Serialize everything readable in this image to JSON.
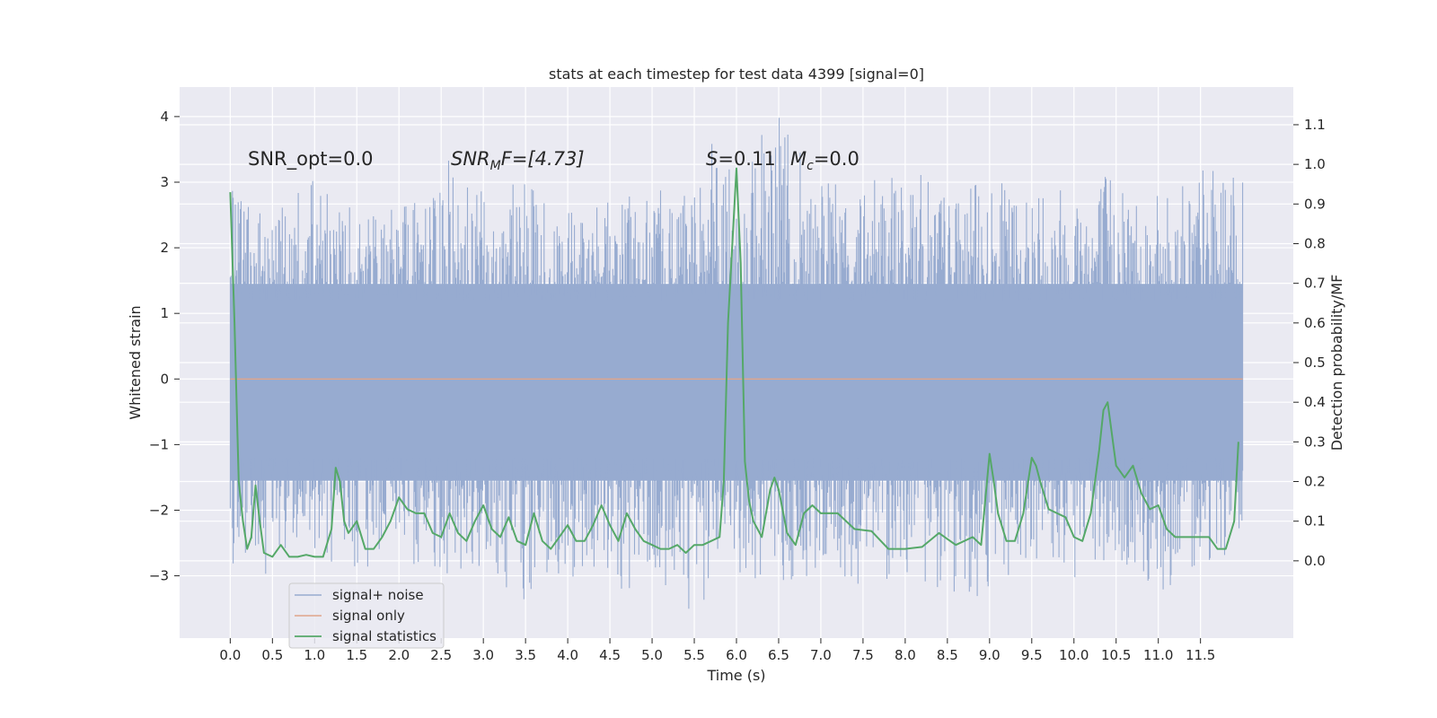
{
  "chart_data": {
    "type": "line",
    "title": "stats at each timestep for test data 4399 [signal=0]",
    "xlabel": "Time (s)",
    "ylabel_left": "Whitened strain",
    "ylabel_right": "Detection probability/MF",
    "xlim": [
      -0.6,
      12.6
    ],
    "ylim_left": [
      -3.95,
      4.45
    ],
    "ylim_right": [
      -0.195,
      1.195
    ],
    "x_ticks": [
      0.0,
      0.5,
      1.0,
      1.5,
      2.0,
      2.5,
      3.0,
      3.5,
      4.0,
      4.5,
      5.0,
      5.5,
      6.0,
      6.5,
      7.0,
      7.5,
      8.0,
      8.5,
      9.0,
      9.5,
      10.0,
      10.5,
      11.0,
      11.5
    ],
    "x_tick_labels": [
      "0.0",
      "0.5",
      "1.0",
      "1.5",
      "2.0",
      "2.5",
      "3.0",
      "3.5",
      "4.0",
      "4.5",
      "5.0",
      "5.5",
      "6.0",
      "6.5",
      "7.0",
      "7.5",
      "8.0",
      "8.5",
      "9.0",
      "9.5",
      "10.0",
      "10.5",
      "11.0",
      "11.5"
    ],
    "y_left_ticks": [
      -3,
      -2,
      -1,
      0,
      1,
      2,
      3,
      4
    ],
    "y_left_tick_labels": [
      "−3",
      "−2",
      "−1",
      "0",
      "1",
      "2",
      "3",
      "4"
    ],
    "y_right_ticks": [
      0.0,
      0.1,
      0.2,
      0.3,
      0.4,
      0.5,
      0.6,
      0.7,
      0.8,
      0.9,
      1.0,
      1.1
    ],
    "y_right_tick_labels": [
      "0.0",
      "0.1",
      "0.2",
      "0.3",
      "0.4",
      "0.5",
      "0.6",
      "0.7",
      "0.8",
      "0.9",
      "1.0",
      "1.1"
    ],
    "grid": true,
    "legend_position": "lower-left",
    "annotations": {
      "snr_opt": "SNR_opt=0.0",
      "snr_mf_sym": "SNR",
      "snr_mf_sub": "M",
      "snr_mf_rest": "F=[4.73]",
      "s_sym": "S",
      "s_rest": "=0.11",
      "mc_sym": "M",
      "mc_sub": "c",
      "mc_rest": "=0.0"
    },
    "series": [
      {
        "name": "signal+ noise",
        "color": "#97abd0",
        "axis": "left",
        "duration_s": 12.0,
        "envelope": {
          "x": [
            0.0,
            0.5,
            1.0,
            1.5,
            2.0,
            2.5,
            3.0,
            3.5,
            4.0,
            4.5,
            5.0,
            5.5,
            5.7,
            6.0,
            6.5,
            7.0,
            7.5,
            8.0,
            8.5,
            9.0,
            9.5,
            10.0,
            10.5,
            11.0,
            11.5,
            12.0
          ],
          "upper": [
            2.9,
            2.6,
            3.05,
            2.6,
            2.6,
            3.45,
            2.9,
            3.0,
            2.8,
            2.75,
            2.9,
            3.0,
            3.8,
            3.2,
            4.1,
            3.0,
            3.35,
            3.3,
            2.9,
            3.0,
            3.0,
            3.2,
            3.3,
            2.8,
            3.35,
            3.0
          ],
          "lower": [
            -2.8,
            -3.1,
            -2.8,
            -2.9,
            -2.9,
            -3.0,
            -2.9,
            -3.45,
            -3.0,
            -3.5,
            -3.0,
            -3.6,
            -3.2,
            -3.0,
            -3.1,
            -3.0,
            -3.2,
            -3.0,
            -3.3,
            -3.35,
            -2.7,
            -3.2,
            -3.0,
            -3.3,
            -2.8,
            -2.7
          ]
        }
      },
      {
        "name": "signal only",
        "color": "#e0a58a",
        "axis": "left",
        "x": [
          0.0,
          12.0
        ],
        "y": [
          0.0,
          0.0
        ]
      },
      {
        "name": "signal statistics",
        "color": "#55a868",
        "axis": "right",
        "x": [
          0.0,
          0.05,
          0.1,
          0.15,
          0.2,
          0.25,
          0.3,
          0.35,
          0.4,
          0.5,
          0.6,
          0.7,
          0.8,
          0.9,
          1.0,
          1.1,
          1.2,
          1.25,
          1.3,
          1.35,
          1.4,
          1.5,
          1.6,
          1.7,
          1.8,
          1.9,
          2.0,
          2.1,
          2.2,
          2.3,
          2.4,
          2.5,
          2.6,
          2.7,
          2.8,
          2.9,
          3.0,
          3.1,
          3.2,
          3.3,
          3.4,
          3.5,
          3.6,
          3.7,
          3.8,
          3.9,
          4.0,
          4.1,
          4.2,
          4.3,
          4.4,
          4.5,
          4.6,
          4.7,
          4.8,
          4.9,
          5.0,
          5.1,
          5.2,
          5.3,
          5.4,
          5.5,
          5.6,
          5.7,
          5.8,
          5.85,
          5.9,
          6.0,
          6.05,
          6.1,
          6.15,
          6.2,
          6.3,
          6.4,
          6.45,
          6.5,
          6.6,
          6.7,
          6.8,
          6.9,
          7.0,
          7.2,
          7.4,
          7.6,
          7.8,
          8.0,
          8.2,
          8.4,
          8.6,
          8.8,
          8.9,
          9.0,
          9.05,
          9.1,
          9.2,
          9.3,
          9.4,
          9.5,
          9.55,
          9.6,
          9.7,
          9.8,
          9.9,
          10.0,
          10.1,
          10.2,
          10.3,
          10.35,
          10.4,
          10.5,
          10.6,
          10.7,
          10.8,
          10.9,
          11.0,
          11.1,
          11.2,
          11.3,
          11.4,
          11.5,
          11.6,
          11.7,
          11.8,
          11.9,
          11.95
        ],
        "y": [
          0.93,
          0.6,
          0.2,
          0.1,
          0.03,
          0.06,
          0.19,
          0.1,
          0.02,
          0.01,
          0.04,
          0.01,
          0.01,
          0.015,
          0.01,
          0.01,
          0.08,
          0.235,
          0.2,
          0.1,
          0.07,
          0.1,
          0.03,
          0.03,
          0.06,
          0.1,
          0.16,
          0.13,
          0.12,
          0.12,
          0.07,
          0.06,
          0.12,
          0.07,
          0.05,
          0.1,
          0.14,
          0.08,
          0.06,
          0.11,
          0.05,
          0.04,
          0.12,
          0.05,
          0.03,
          0.06,
          0.09,
          0.05,
          0.05,
          0.09,
          0.14,
          0.09,
          0.05,
          0.12,
          0.08,
          0.05,
          0.04,
          0.03,
          0.03,
          0.04,
          0.02,
          0.04,
          0.04,
          0.05,
          0.06,
          0.2,
          0.6,
          0.99,
          0.75,
          0.25,
          0.15,
          0.1,
          0.06,
          0.18,
          0.21,
          0.18,
          0.07,
          0.04,
          0.12,
          0.14,
          0.12,
          0.12,
          0.08,
          0.075,
          0.03,
          0.03,
          0.035,
          0.07,
          0.04,
          0.06,
          0.04,
          0.27,
          0.2,
          0.12,
          0.05,
          0.05,
          0.12,
          0.26,
          0.24,
          0.2,
          0.13,
          0.12,
          0.11,
          0.06,
          0.05,
          0.12,
          0.28,
          0.38,
          0.4,
          0.24,
          0.21,
          0.24,
          0.17,
          0.13,
          0.14,
          0.08,
          0.06,
          0.06,
          0.06,
          0.06,
          0.06,
          0.03,
          0.03,
          0.1,
          0.3
        ]
      }
    ]
  }
}
